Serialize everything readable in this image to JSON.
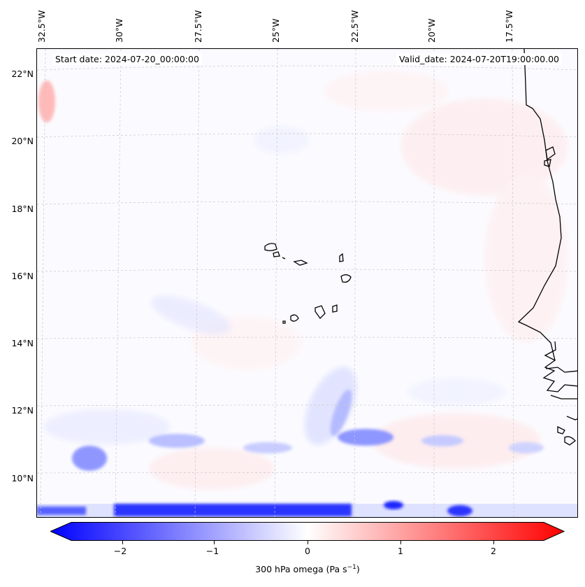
{
  "map": {
    "start_date": "Start date: 2024-07-20_00:00:00",
    "valid_date": "Valid_date: 2024-07-20T19:00:00.00",
    "lon_labels": [
      "32.5°W",
      "30°W",
      "27.5°W",
      "25°W",
      "22.5°W",
      "20°W",
      "17.5°W"
    ],
    "lat_labels": [
      "22°N",
      "20°N",
      "18°N",
      "16°N",
      "14°N",
      "12°N",
      "10°N"
    ],
    "colors": {
      "negative": "#0000ff",
      "neutral": "#ffffff",
      "positive": "#ff0000",
      "coastline": "#000000",
      "gridline": "#c8c8c8"
    }
  },
  "colorbar": {
    "label_prefix": "300 hPa omega (Pa s",
    "label_exp": "−1",
    "label_suffix": ")",
    "ticks": [
      "−2",
      "−1",
      "0",
      "1",
      "2"
    ],
    "range": [
      -2.7,
      2.7
    ]
  }
}
